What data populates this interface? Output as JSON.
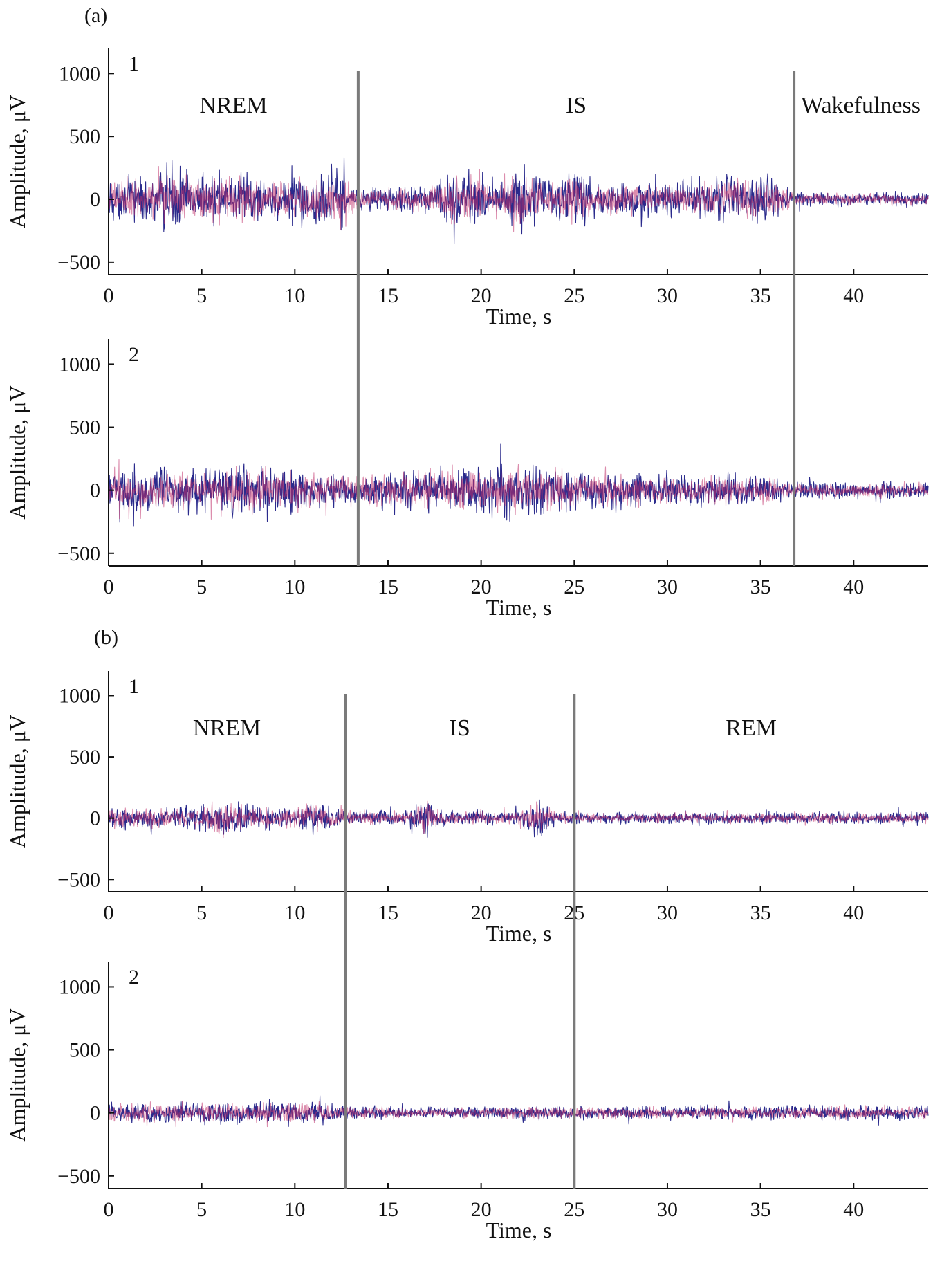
{
  "panel_letters": [
    "(a)",
    "(b)"
  ],
  "chart_data": [
    {
      "type": "line",
      "group": "(a)",
      "trace_number": "1",
      "xlabel": "Time, s",
      "ylabel": "Amplitude, μV",
      "xlim": [
        0,
        44
      ],
      "ylim": [
        -600,
        1200
      ],
      "xticks": [
        0,
        5,
        10,
        15,
        20,
        25,
        30,
        35,
        40
      ],
      "yticks": [
        -500,
        0,
        500,
        1000
      ],
      "ytick_labels": [
        "−500",
        "0",
        "500",
        "1000"
      ],
      "phases": [
        {
          "label": "NREM",
          "start": 0,
          "end": 13.4
        },
        {
          "label": "IS",
          "start": 13.4,
          "end": 36.8
        },
        {
          "label": "Wakefulness",
          "start": 36.8,
          "end": 44
        }
      ],
      "boundaries": [
        13.4,
        36.8
      ],
      "envelope": {
        "t": [
          0,
          2,
          3,
          5,
          7,
          9,
          11,
          12.5,
          13.4,
          17,
          19,
          21,
          22,
          24,
          25,
          26,
          30,
          35,
          36.8,
          38,
          44
        ],
        "amp": [
          220,
          240,
          380,
          260,
          280,
          230,
          300,
          330,
          120,
          140,
          320,
          180,
          380,
          200,
          300,
          200,
          160,
          300,
          90,
          70,
          70
        ]
      },
      "series": [
        {
          "color": "#2a2a8c"
        },
        {
          "color": "#c0306a"
        }
      ]
    },
    {
      "type": "line",
      "group": "(a)",
      "trace_number": "2",
      "xlabel": "Time, s",
      "ylabel": "Amplitude, μV",
      "xlim": [
        0,
        44
      ],
      "ylim": [
        -600,
        1200
      ],
      "xticks": [
        0,
        5,
        10,
        15,
        20,
        25,
        30,
        35,
        40
      ],
      "yticks": [
        -500,
        0,
        500,
        1000
      ],
      "ytick_labels": [
        "−500",
        "0",
        "500",
        "1000"
      ],
      "phases": [],
      "boundaries": [
        13.4,
        36.8
      ],
      "envelope": {
        "t": [
          0,
          2,
          5,
          7,
          10,
          13.4,
          16,
          19,
          21.5,
          22.5,
          25,
          30,
          35,
          36.8,
          44
        ],
        "amp": [
          230,
          240,
          250,
          280,
          220,
          170,
          220,
          260,
          300,
          260,
          220,
          170,
          170,
          90,
          90
        ]
      },
      "series": [
        {
          "color": "#2a2a8c"
        },
        {
          "color": "#c0306a"
        }
      ]
    },
    {
      "type": "line",
      "group": "(b)",
      "trace_number": "1",
      "xlabel": "Time, s",
      "ylabel": "Amplitude, μV",
      "xlim": [
        0,
        44
      ],
      "ylim": [
        -600,
        1200
      ],
      "xticks": [
        0,
        5,
        10,
        15,
        20,
        25,
        30,
        35,
        40
      ],
      "yticks": [
        -500,
        0,
        500,
        1000
      ],
      "ytick_labels": [
        "−500",
        "0",
        "500",
        "1000"
      ],
      "phases": [
        {
          "label": "NREM",
          "start": 0,
          "end": 12.7
        },
        {
          "label": "IS",
          "start": 12.7,
          "end": 25
        },
        {
          "label": "REM",
          "start": 25,
          "end": 44
        }
      ],
      "boundaries": [
        12.7,
        25
      ],
      "envelope": {
        "t": [
          0,
          3,
          5,
          6,
          7,
          9,
          11,
          12.7,
          16,
          17,
          18,
          22,
          23,
          24,
          25,
          44
        ],
        "amp": [
          130,
          110,
          140,
          230,
          170,
          110,
          190,
          90,
          80,
          230,
          80,
          80,
          220,
          80,
          60,
          70
        ]
      },
      "series": [
        {
          "color": "#2a2a8c"
        },
        {
          "color": "#c0306a"
        }
      ]
    },
    {
      "type": "line",
      "group": "(b)",
      "trace_number": "2",
      "xlabel": "Time, s",
      "ylabel": "Amplitude, μV",
      "xlim": [
        0,
        44
      ],
      "ylim": [
        -600,
        1200
      ],
      "xticks": [
        0,
        5,
        10,
        15,
        20,
        25,
        30,
        35,
        40
      ],
      "yticks": [
        -500,
        0,
        500,
        1000
      ],
      "ytick_labels": [
        "−500",
        "0",
        "500",
        "1000"
      ],
      "phases": [],
      "boundaries": [
        12.7,
        25
      ],
      "envelope": {
        "t": [
          0,
          5,
          10,
          11,
          12.7,
          20,
          23,
          25,
          44
        ],
        "amp": [
          120,
          120,
          110,
          140,
          70,
          60,
          90,
          70,
          80
        ]
      },
      "series": [
        {
          "color": "#2a2a8c"
        },
        {
          "color": "#c0306a"
        }
      ]
    }
  ]
}
